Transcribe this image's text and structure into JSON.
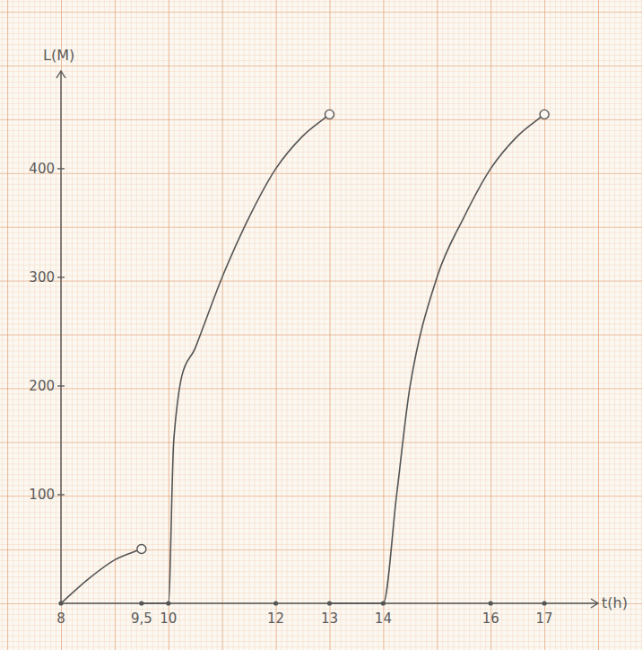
{
  "chart_data": {
    "type": "line",
    "x_label": "t(h)",
    "y_label": "L(M)",
    "x": [
      8,
      8.5,
      9,
      9.5,
      9.5,
      9.5,
      10,
      10.1,
      10.5,
      11,
      11.5,
      12,
      12.5,
      13,
      13,
      13,
      14,
      14.25,
      14.5,
      15,
      15.5,
      16,
      16.5,
      17
    ],
    "series": [
      {
        "color": "#555555",
        "marker": "open-end",
        "line_style": "solid",
        "values": [
          0,
          22,
          40,
          50,
          null,
          0,
          0,
          150,
          235,
          300,
          355,
          400,
          430,
          450,
          null,
          0,
          0,
          100,
          200,
          300,
          355,
          400,
          430,
          450
        ]
      }
    ],
    "xlim": [
      8,
      18
    ],
    "ylim": [
      0,
      490
    ],
    "xticks": [
      8,
      {
        "value": 9.5,
        "label": "9,5"
      },
      10,
      12,
      13,
      14,
      16,
      17
    ],
    "yticks": [
      100,
      200,
      300,
      400
    ],
    "grid": true
  }
}
